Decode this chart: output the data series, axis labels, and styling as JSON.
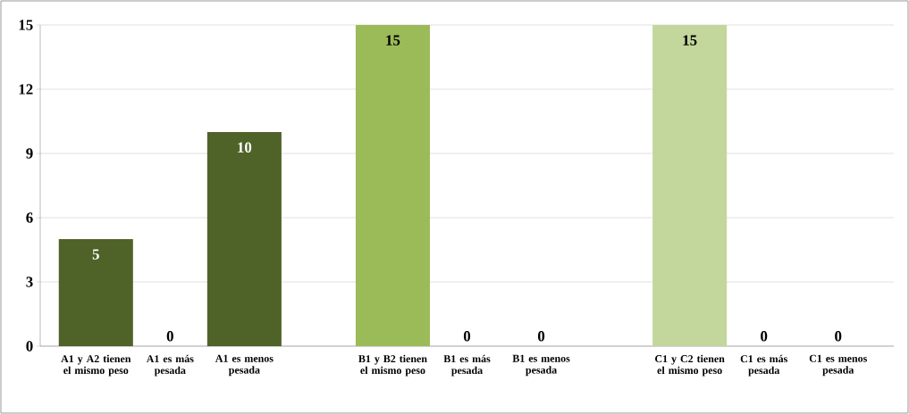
{
  "chart_data": {
    "type": "bar",
    "categories": [
      "A1 y A2 tienen el mismo peso",
      "A1 es más pesada",
      "A1 es menos pesada",
      null,
      "B1 y B2 tienen el mismo peso",
      "B1 es más pesada",
      "B1 es menos pesada",
      null,
      "C1 y C2 tienen el mismo peso",
      "C1 es más pesada",
      "C1 es menos pesada"
    ],
    "values": [
      5,
      0,
      10,
      null,
      15,
      0,
      0,
      null,
      15,
      0,
      0
    ],
    "colors": [
      "#4f6228",
      "#4f6228",
      "#4f6228",
      null,
      "#9bbb59",
      "#9bbb59",
      "#9bbb59",
      null,
      "#c3d69b",
      "#c3d69b",
      "#c3d69b"
    ],
    "ylim": [
      0,
      15
    ],
    "yticks": [
      0,
      3,
      6,
      9,
      12,
      15
    ],
    "grid": "y",
    "data_labels": true
  }
}
